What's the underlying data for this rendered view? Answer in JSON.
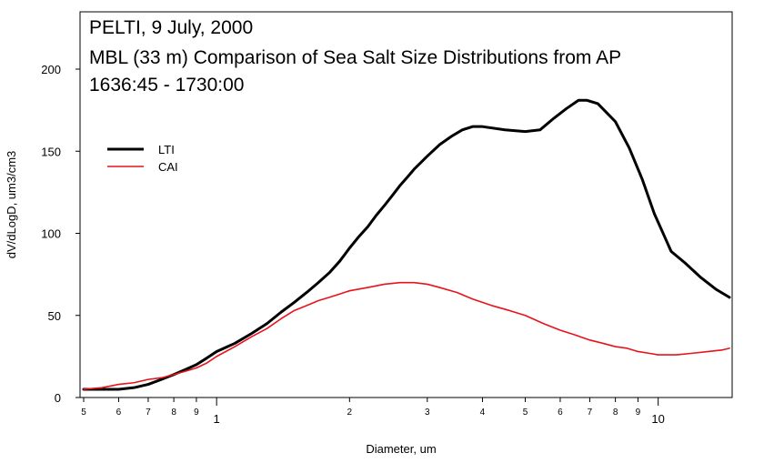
{
  "chart_data": {
    "type": "line",
    "title_lines": [
      "PELTI, 9 July, 2000",
      "MBL (33 m) Comparison of Sea Salt Size Distributions from AP",
      "1636:45 - 1730:00"
    ],
    "xlabel": "Diameter, um",
    "ylabel": "dV/dLogD, um3/cm3",
    "x_scale": "log",
    "xlim": [
      0.5,
      14.5
    ],
    "ylim": [
      0,
      200
    ],
    "y_ticks": [
      0,
      50,
      100,
      150,
      200
    ],
    "x_major_ticks": [
      {
        "value": 1,
        "label": "1"
      },
      {
        "value": 10,
        "label": "10"
      }
    ],
    "x_minor_ticks": [
      {
        "value": 0.5,
        "label": "5"
      },
      {
        "value": 0.6,
        "label": "6"
      },
      {
        "value": 0.7,
        "label": "7"
      },
      {
        "value": 0.8,
        "label": "8"
      },
      {
        "value": 0.9,
        "label": "9"
      },
      {
        "value": 2,
        "label": "2"
      },
      {
        "value": 3,
        "label": "3"
      },
      {
        "value": 4,
        "label": "4"
      },
      {
        "value": 5,
        "label": "5"
      },
      {
        "value": 6,
        "label": "6"
      },
      {
        "value": 7,
        "label": "7"
      },
      {
        "value": 8,
        "label": "8"
      },
      {
        "value": 9,
        "label": "9"
      }
    ],
    "grid": false,
    "legend_position": "upper-left",
    "series": [
      {
        "name": "LTI",
        "color": "#000000",
        "points": [
          [
            0.5,
            5
          ],
          [
            0.55,
            5
          ],
          [
            0.6,
            5
          ],
          [
            0.65,
            6
          ],
          [
            0.7,
            8
          ],
          [
            0.75,
            11
          ],
          [
            0.8,
            14
          ],
          [
            0.85,
            17
          ],
          [
            0.9,
            20
          ],
          [
            0.95,
            24
          ],
          [
            1.0,
            28
          ],
          [
            1.1,
            33
          ],
          [
            1.2,
            39
          ],
          [
            1.3,
            45
          ],
          [
            1.4,
            52
          ],
          [
            1.5,
            58
          ],
          [
            1.6,
            64
          ],
          [
            1.7,
            70
          ],
          [
            1.8,
            76
          ],
          [
            1.9,
            83
          ],
          [
            2.0,
            91
          ],
          [
            2.1,
            98
          ],
          [
            2.2,
            104
          ],
          [
            2.3,
            111
          ],
          [
            2.4,
            117
          ],
          [
            2.5,
            123
          ],
          [
            2.6,
            129
          ],
          [
            2.7,
            134
          ],
          [
            2.8,
            139
          ],
          [
            3.0,
            147
          ],
          [
            3.2,
            154
          ],
          [
            3.4,
            159
          ],
          [
            3.6,
            163
          ],
          [
            3.8,
            165
          ],
          [
            4.0,
            165
          ],
          [
            4.5,
            163
          ],
          [
            5.0,
            162
          ],
          [
            5.4,
            163
          ],
          [
            5.8,
            170
          ],
          [
            6.2,
            176
          ],
          [
            6.6,
            181
          ],
          [
            6.9,
            181
          ],
          [
            7.3,
            179
          ],
          [
            8.0,
            168
          ],
          [
            8.6,
            152
          ],
          [
            9.2,
            133
          ],
          [
            9.8,
            112
          ],
          [
            10.3,
            99
          ],
          [
            10.7,
            89
          ],
          [
            11.5,
            82
          ],
          [
            12.5,
            73
          ],
          [
            13.5,
            66
          ],
          [
            14.5,
            61
          ]
        ]
      },
      {
        "name": "CAI",
        "color": "#e8131a",
        "points": [
          [
            0.5,
            5
          ],
          [
            0.55,
            6
          ],
          [
            0.6,
            8
          ],
          [
            0.65,
            9
          ],
          [
            0.7,
            11
          ],
          [
            0.75,
            12
          ],
          [
            0.8,
            14
          ],
          [
            0.85,
            16
          ],
          [
            0.9,
            18
          ],
          [
            0.95,
            21
          ],
          [
            1.0,
            25
          ],
          [
            1.1,
            31
          ],
          [
            1.2,
            37
          ],
          [
            1.3,
            42
          ],
          [
            1.4,
            48
          ],
          [
            1.5,
            53
          ],
          [
            1.6,
            56
          ],
          [
            1.7,
            59
          ],
          [
            1.8,
            61
          ],
          [
            1.9,
            63
          ],
          [
            2.0,
            65
          ],
          [
            2.2,
            67
          ],
          [
            2.4,
            69
          ],
          [
            2.6,
            70
          ],
          [
            2.8,
            70
          ],
          [
            3.0,
            69
          ],
          [
            3.2,
            67
          ],
          [
            3.5,
            64
          ],
          [
            3.8,
            60
          ],
          [
            4.2,
            56
          ],
          [
            4.6,
            53
          ],
          [
            5.0,
            50
          ],
          [
            5.5,
            45
          ],
          [
            6.0,
            41
          ],
          [
            6.5,
            38
          ],
          [
            7.0,
            35
          ],
          [
            7.5,
            33
          ],
          [
            8.0,
            31
          ],
          [
            8.5,
            30
          ],
          [
            9.0,
            28
          ],
          [
            9.5,
            27
          ],
          [
            10.0,
            26
          ],
          [
            10.5,
            26
          ],
          [
            11.0,
            26
          ],
          [
            12.0,
            27
          ],
          [
            13.0,
            28
          ],
          [
            14.0,
            29
          ],
          [
            14.5,
            30
          ]
        ]
      }
    ]
  }
}
